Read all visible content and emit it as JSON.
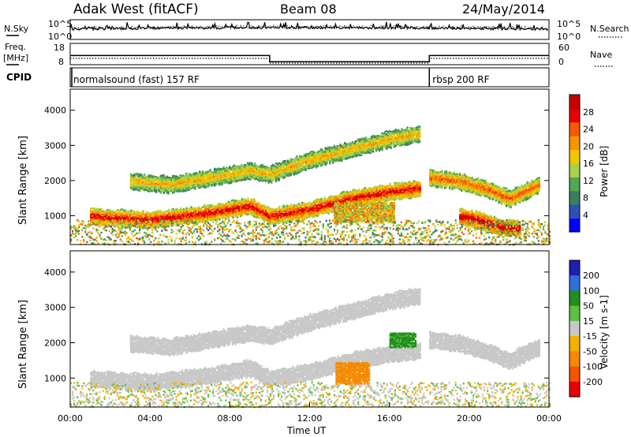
{
  "header": {
    "station": "Adak West (fitACF)",
    "beam": "Beam 08",
    "date": "24/May/2014"
  },
  "colors": {
    "power_scale": [
      "#0000ff",
      "#2f4fb8",
      "#3b7f5f",
      "#52a852",
      "#a8d24a",
      "#f5c400",
      "#f59500",
      "#f55a00",
      "#e80000",
      "#c80000"
    ],
    "velocity_scale": [
      "#1f1fb0",
      "#2e6fd8",
      "#1f8f1f",
      "#60c040",
      "#c8c8c8",
      "#f5b000",
      "#f58a00",
      "#f55500",
      "#e80000"
    ]
  },
  "strips": {
    "nsky": {
      "left_label": "N.Sky",
      "right_label": "N.Search",
      "tick_top": "10^5",
      "tick_bottom": "10^0"
    },
    "freq": {
      "left_label_1": "Freq.",
      "left_label_2": "[MHz]",
      "right_label": "Nave",
      "left_ticks": [
        "18",
        "8"
      ],
      "right_ticks": [
        "60",
        "0"
      ],
      "segments": [
        {
          "start_hour": 0,
          "end_hour": 10,
          "freq_mhz": 12.3
        },
        {
          "start_hour": 10,
          "end_hour": 18,
          "freq_mhz": 9.4
        },
        {
          "start_hour": 18,
          "end_hour": 24,
          "freq_mhz": 12.3
        }
      ]
    },
    "cpid": {
      "label": "CPID",
      "modes": [
        {
          "text": "normalsound (fast) 157 RF",
          "start_hour": 0
        },
        {
          "text": "rbsp 200 RF",
          "start_hour": 18
        }
      ]
    }
  },
  "chart_data": [
    {
      "type": "heatmap",
      "name": "power",
      "ylabel": "Slant Range [km]",
      "ylim": [
        180,
        4600
      ],
      "xlim": [
        0,
        24
      ],
      "yticks": [
        1000,
        2000,
        3000,
        4000
      ],
      "colorbar": {
        "label": "Power [dB]",
        "range": [
          0,
          32
        ],
        "ticks": [
          4,
          8,
          12,
          16,
          20,
          24,
          28
        ]
      },
      "echo_bands": [
        {
          "x": [
            1.0,
            4.0,
            7.0,
            9.0,
            10.0,
            12.0,
            14.0,
            16.0,
            17.5
          ],
          "y": [
            1000,
            900,
            1100,
            1300,
            1000,
            1200,
            1500,
            1700,
            1800
          ],
          "power_db": 26
        },
        {
          "x": [
            3.0,
            5.0,
            7.0,
            9.0,
            10.0,
            12.0,
            14.0,
            16.0,
            17.5
          ],
          "y": [
            2000,
            1900,
            2100,
            2300,
            2200,
            2600,
            2900,
            3200,
            3350
          ],
          "power_db": 18
        },
        {
          "x": [
            18.0,
            19.5,
            21.0,
            22.0,
            23.5
          ],
          "y": [
            2100,
            2000,
            1750,
            1500,
            1900
          ],
          "power_db": 22
        },
        {
          "x": [
            19.5,
            20.5,
            21.5,
            22.5
          ],
          "y": [
            1000,
            900,
            700,
            650
          ],
          "power_db": 28
        }
      ],
      "echo_patches": [
        {
          "x": [
            13.2,
            16.2
          ],
          "y": [
            850,
            1400
          ],
          "power_db": 18
        }
      ]
    },
    {
      "type": "heatmap",
      "name": "velocity",
      "xlabel": "Time UT",
      "ylabel": "Slant Range [km]",
      "ylim": [
        180,
        4600
      ],
      "xlim": [
        0,
        24
      ],
      "yticks": [
        1000,
        2000,
        3000,
        4000
      ],
      "xticks": [
        "00:00",
        "04:00",
        "08:00",
        "12:00",
        "16:00",
        "20:00",
        "00:00"
      ],
      "colorbar": {
        "label": "Velocity [m s-1]",
        "levels": [
          "200",
          "100",
          "50",
          "15",
          "-15",
          "-50",
          "-100",
          "-200"
        ]
      },
      "echo_bands": [
        {
          "x": [
            1.0,
            4.0,
            7.0,
            9.0,
            10.0,
            12.0,
            14.0,
            16.0,
            17.5
          ],
          "y": [
            1000,
            900,
            1100,
            1300,
            1000,
            1200,
            1500,
            1700,
            1800
          ],
          "velocity": 0
        },
        {
          "x": [
            3.0,
            5.0,
            7.0,
            9.0,
            10.0,
            12.0,
            14.0,
            16.0,
            17.5
          ],
          "y": [
            2000,
            1900,
            2100,
            2300,
            2200,
            2600,
            2900,
            3200,
            3350
          ],
          "velocity": 0
        },
        {
          "x": [
            18.0,
            19.5,
            21.0,
            22.0,
            23.5
          ],
          "y": [
            2100,
            2000,
            1750,
            1500,
            1900
          ],
          "velocity": 0
        }
      ],
      "echo_patches": [
        {
          "x": [
            13.3,
            15.0
          ],
          "y": [
            850,
            1450
          ],
          "velocity": -60
        },
        {
          "x": [
            16.0,
            17.3
          ],
          "y": [
            1900,
            2300
          ],
          "velocity": 40
        }
      ]
    }
  ]
}
